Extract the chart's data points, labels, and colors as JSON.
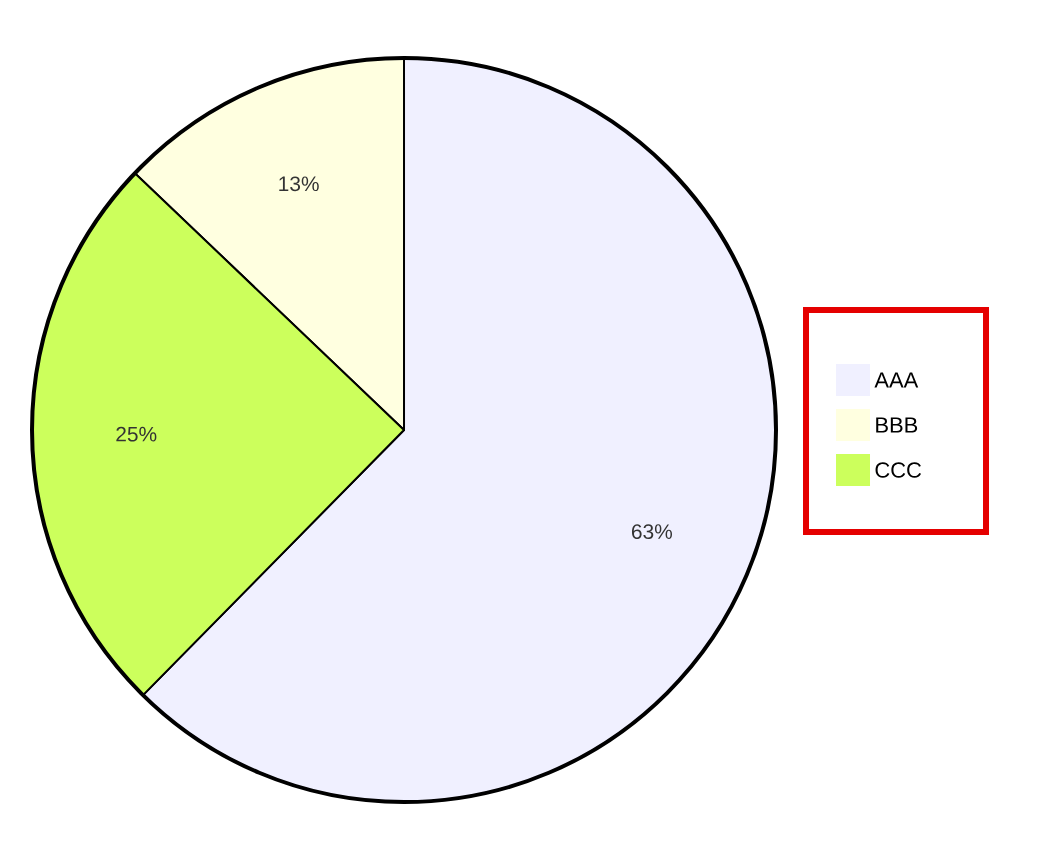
{
  "chart_data": {
    "type": "pie",
    "categories": [
      "AAA",
      "BBB",
      "CCC"
    ],
    "values": [
      63,
      13,
      25
    ],
    "value_labels": [
      "63%",
      "13%",
      "25%"
    ],
    "colors": [
      "#f0f0ff",
      "#ffffe0",
      "#ccff5c"
    ],
    "legend": "right"
  }
}
